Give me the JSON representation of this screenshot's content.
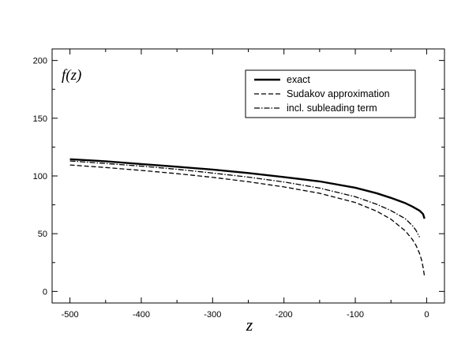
{
  "chart_data": {
    "type": "line",
    "xlabel": "z",
    "ylabel": "f(z)",
    "xlim": [
      -525,
      25
    ],
    "ylim": [
      -10,
      210
    ],
    "xticks": [
      -500,
      -400,
      -300,
      -200,
      -100,
      0
    ],
    "xtick_labels": [
      "-500",
      "-400",
      "-300",
      "-200",
      "-100",
      "0"
    ],
    "yticks": [
      0,
      50,
      100,
      150,
      200
    ],
    "ytick_labels": [
      "0",
      "50",
      "100",
      "150",
      "200"
    ],
    "grid": false,
    "legend_position": "top-right",
    "series": [
      {
        "name": "exact",
        "style": "solid",
        "color": "#000000",
        "x": [
          -500,
          -450,
          -400,
          -350,
          -300,
          -250,
          -200,
          -150,
          -100,
          -70,
          -50,
          -30,
          -20,
          -10,
          -5,
          -3
        ],
        "y": [
          114.5,
          112.7,
          110.3,
          108.0,
          105.5,
          102.5,
          99.0,
          95.3,
          89.8,
          85.0,
          81.0,
          76.5,
          73.5,
          70.0,
          67.0,
          63.0
        ]
      },
      {
        "name": "Sudakov approximation",
        "style": "dashed",
        "color": "#000000",
        "x": [
          -500,
          -450,
          -400,
          -350,
          -300,
          -250,
          -200,
          -150,
          -100,
          -70,
          -50,
          -30,
          -20,
          -15,
          -10,
          -7,
          -5,
          -3
        ],
        "y": [
          109.5,
          107.3,
          104.8,
          102.0,
          98.8,
          95.0,
          90.5,
          85.0,
          77.0,
          69.5,
          62.5,
          52.5,
          45.0,
          40.0,
          33.0,
          27.0,
          21.0,
          13.0
        ]
      },
      {
        "name": "incl. subleading term",
        "style": "dashdot",
        "color": "#000000",
        "x": [
          -500,
          -450,
          -400,
          -350,
          -300,
          -250,
          -200,
          -150,
          -100,
          -70,
          -50,
          -30,
          -20,
          -15,
          -10
        ],
        "y": [
          113.0,
          110.8,
          108.5,
          105.8,
          102.5,
          99.0,
          94.8,
          89.5,
          82.0,
          75.5,
          70.0,
          63.0,
          57.0,
          53.0,
          47.0
        ]
      }
    ]
  }
}
